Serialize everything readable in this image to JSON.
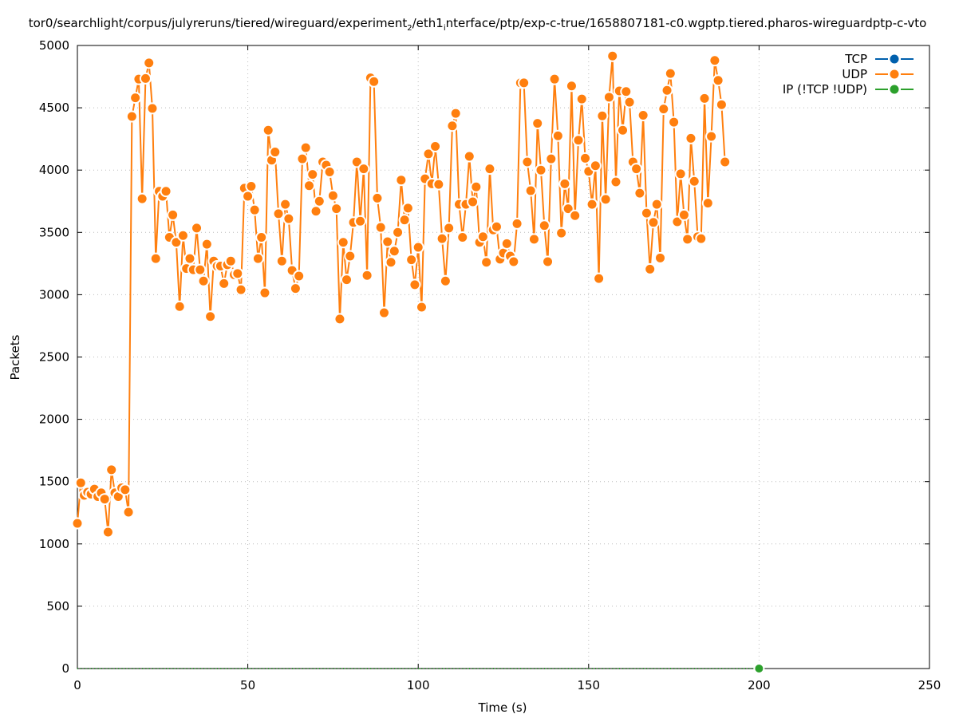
{
  "chart_data": {
    "type": "line",
    "title_parts": [
      "tor0/searchlight/corpus/julyreruns/tiered/wireguard/experiment",
      "2",
      "/eth1",
      "i",
      "nterface/ptp/exp-c-true/1658807181-c0.wgptp.tiered.pharos-wireguardptp-c-vto"
    ],
    "xlabel": "Time (s)",
    "ylabel": "Packets",
    "xlim": [
      0,
      250
    ],
    "ylim": [
      0,
      5000
    ],
    "xticks": [
      "0",
      "50",
      "100",
      "150",
      "200",
      "250"
    ],
    "yticks": [
      "0",
      "500",
      "1000",
      "1500",
      "2000",
      "2500",
      "3000",
      "3500",
      "4000",
      "4500",
      "5000"
    ],
    "grid": true,
    "legend_position": "top-right",
    "series": [
      {
        "name": "TCP",
        "color": "#0060ad",
        "values": []
      },
      {
        "name": "UDP",
        "color": "#ff7f0e",
        "values": [
          1165,
          1490,
          1390,
          1415,
          1400,
          1440,
          1380,
          1410,
          1360,
          1095,
          1595,
          1410,
          1380,
          1450,
          1435,
          1255,
          4430,
          4580,
          4730,
          3770,
          4735,
          4860,
          4495,
          3290,
          3830,
          3790,
          3830,
          3460,
          3640,
          3420,
          2905,
          3475,
          3210,
          3290,
          3200,
          3535,
          3200,
          3110,
          3405,
          2825,
          3270,
          3230,
          3230,
          3090,
          3240,
          3270,
          3160,
          3170,
          3040,
          3855,
          3790,
          3870,
          3680,
          3290,
          3460,
          3015,
          4320,
          4080,
          4145,
          3650,
          3270,
          3725,
          3610,
          3195,
          3050,
          3150,
          4090,
          4180,
          3875,
          3965,
          3670,
          3750,
          4065,
          4040,
          3985,
          3795,
          3690,
          2805,
          3420,
          3120,
          3310,
          3580,
          4065,
          3590,
          4010,
          3155,
          4740,
          4710,
          3775,
          3540,
          2855,
          3425,
          3260,
          3350,
          3500,
          3920,
          3600,
          3695,
          3280,
          3080,
          3380,
          2900,
          3930,
          4130,
          3890,
          4190,
          3885,
          3450,
          3110,
          3535,
          4355,
          4455,
          3725,
          3460,
          3725,
          4110,
          3745,
          3865,
          3420,
          3465,
          3260,
          4010,
          3520,
          3545,
          3285,
          3335,
          3410,
          3310,
          3265,
          3570,
          4700,
          4700,
          4065,
          3835,
          3445,
          4375,
          4000,
          3555,
          3265,
          4090,
          4730,
          4275,
          3495,
          3890,
          3690,
          4675,
          3635,
          4240,
          4570,
          4095,
          3990,
          3725,
          4035,
          3130,
          4435,
          3765,
          4585,
          4915,
          3905,
          4635,
          4320,
          4630,
          4545,
          4065,
          4010,
          3815,
          4440,
          3655,
          3205,
          3580,
          3725,
          3295,
          4490,
          4640,
          4775,
          4385,
          3585,
          3970,
          3640,
          3445,
          4255,
          3910,
          3465,
          3450,
          4575,
          3735,
          4270,
          4880,
          4720,
          4525,
          4065
        ]
      },
      {
        "name": "IP (!TCP  !UDP)",
        "color": "#2ca02c",
        "values": [
          0,
          0
        ]
      }
    ],
    "ip_x_range": [
      0,
      200
    ]
  }
}
